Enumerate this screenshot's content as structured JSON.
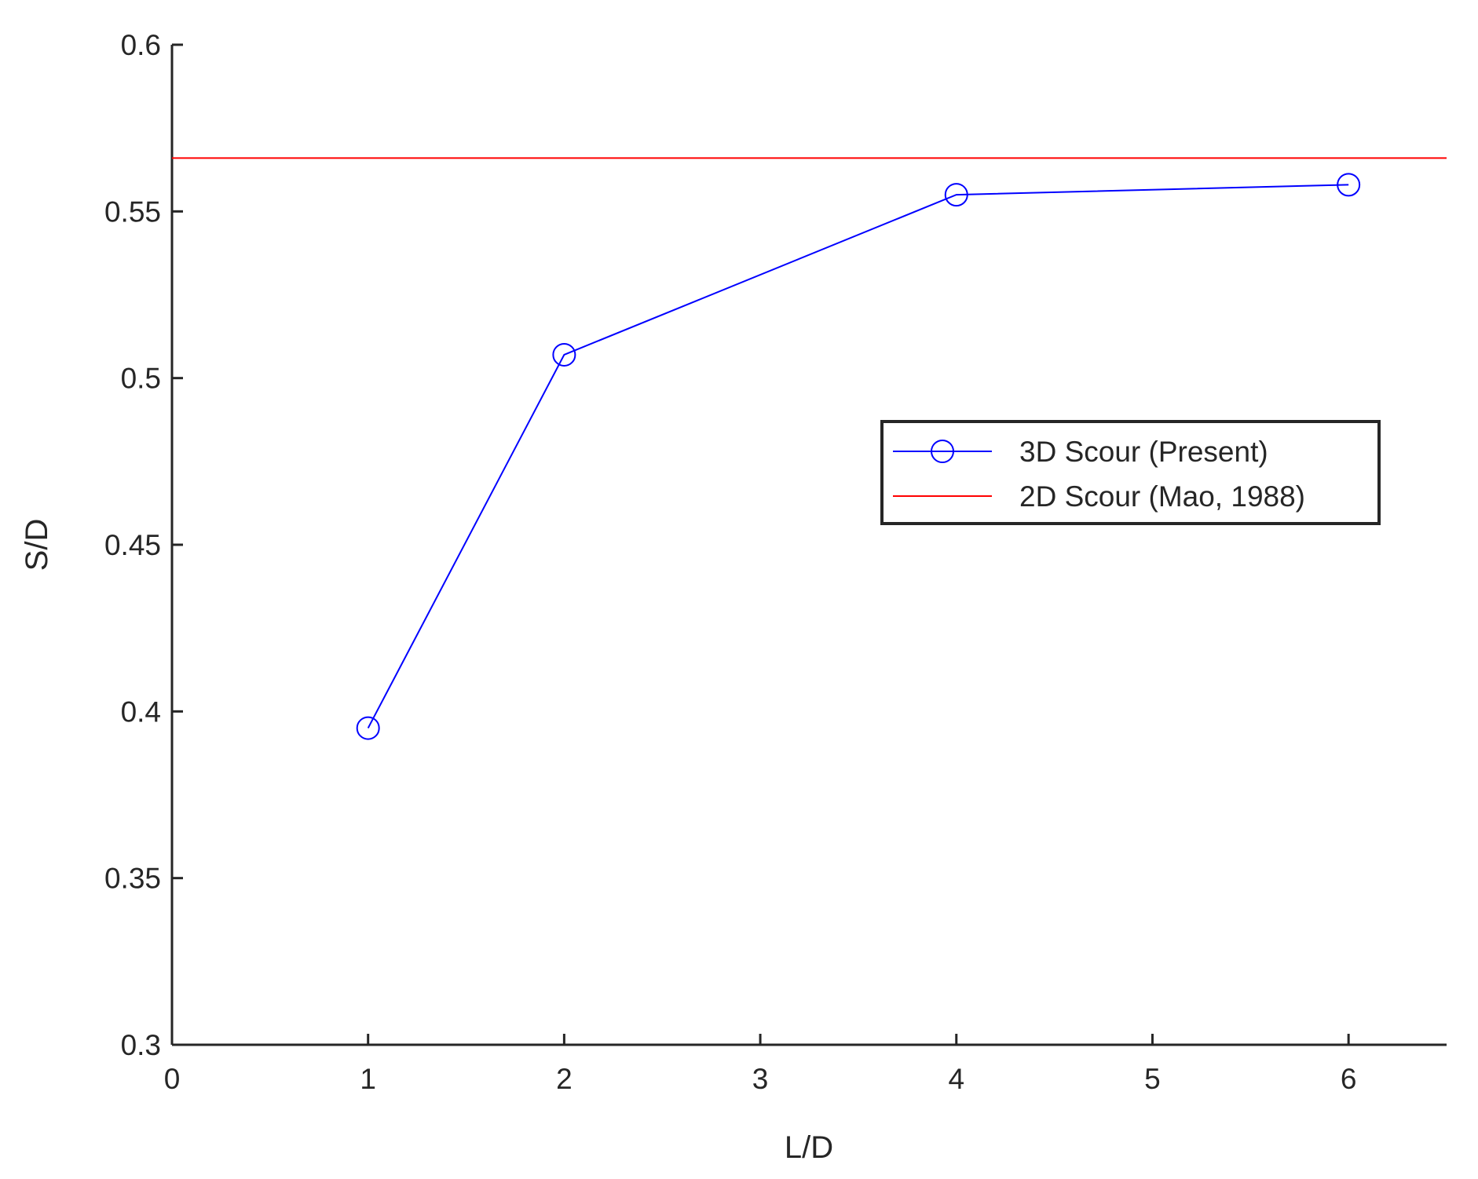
{
  "chart_data": {
    "type": "line",
    "xlabel": "L/D",
    "ylabel": "S/D",
    "xlim": [
      0,
      6.5
    ],
    "xticks": [
      0,
      1,
      2,
      3,
      4,
      5,
      6
    ],
    "ylim": [
      0.3,
      0.6
    ],
    "yticks": [
      0.3,
      0.35,
      0.4,
      0.45,
      0.5,
      0.55,
      0.6
    ],
    "grid": false,
    "legend": "right",
    "series": [
      {
        "name": "3D Scour (Present)",
        "color": "#0000ff",
        "marker": "circle",
        "x": [
          1,
          2,
          4,
          6
        ],
        "values": [
          0.395,
          0.507,
          0.555,
          0.558
        ]
      },
      {
        "name": "2D Scour (Mao, 1988)",
        "color": "#ff0000",
        "marker": "none",
        "x": [
          0,
          6.5
        ],
        "values": [
          0.566,
          0.566
        ]
      }
    ]
  }
}
